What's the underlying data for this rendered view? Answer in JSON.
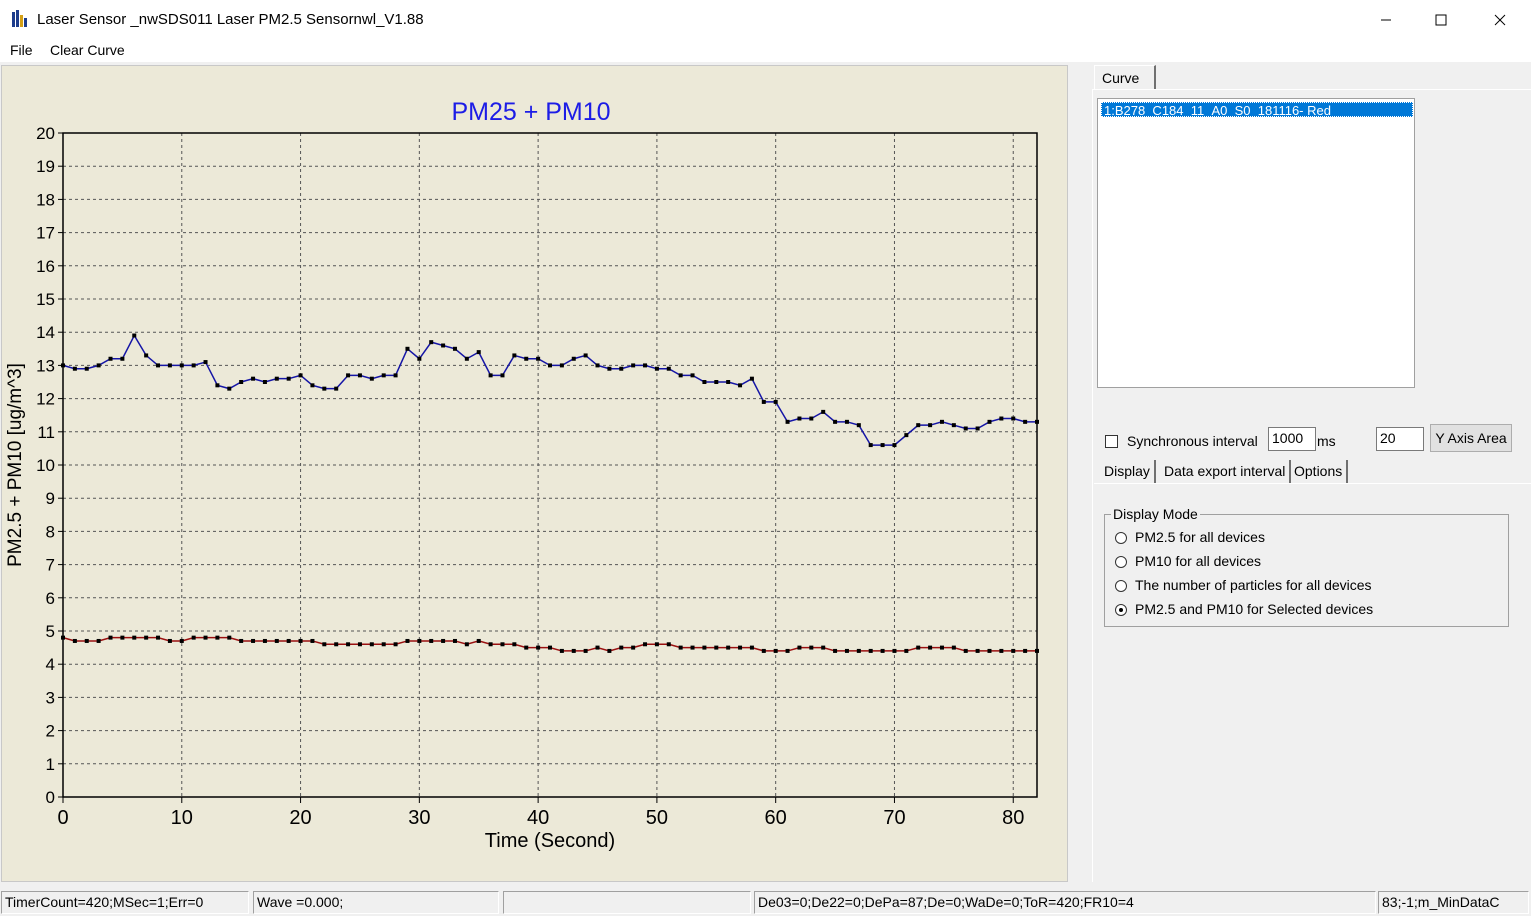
{
  "window": {
    "title": "Laser Sensor _nwSDS011 Laser PM2.5 Sensornwl_V1.88"
  },
  "menu": {
    "file": "File",
    "clear_curve": "Clear Curve"
  },
  "chart_data": {
    "type": "line",
    "title": "PM25 + PM10",
    "xlabel": "Time (Second)",
    "ylabel": "PM2.5 + PM10 [ug/m^3]",
    "xlim": [
      0,
      82
    ],
    "ylim": [
      0,
      20
    ],
    "xticks": [
      0,
      10,
      20,
      30,
      40,
      50,
      60,
      70,
      80
    ],
    "yticks": [
      0,
      1,
      2,
      3,
      4,
      5,
      6,
      7,
      8,
      9,
      10,
      11,
      12,
      13,
      14,
      15,
      16,
      17,
      18,
      19,
      20
    ],
    "grid": true,
    "colors": {
      "title": "#1c1ce6",
      "series_blue": "#1515a6",
      "series_red": "#9a1010",
      "marker": "#000000",
      "background": "#ece9d8"
    },
    "series": [
      {
        "values": [
          13.0,
          12.9,
          12.9,
          13.0,
          13.2,
          13.2,
          13.9,
          13.3,
          13.0,
          13.0,
          13.0,
          13.0,
          13.1,
          12.4,
          12.3,
          12.5,
          12.6,
          12.5,
          12.6,
          12.6,
          12.7,
          12.4,
          12.3,
          12.3,
          12.7,
          12.7,
          12.6,
          12.7,
          12.7,
          13.5,
          13.2,
          13.7,
          13.6,
          13.5,
          13.2,
          13.4,
          12.7,
          12.7,
          13.3,
          13.2,
          13.2,
          13.0,
          13.0,
          13.2,
          13.3,
          13.0,
          12.9,
          12.9,
          13.0,
          13.0,
          12.9,
          12.9,
          12.7,
          12.7,
          12.5,
          12.5,
          12.5,
          12.4,
          12.6,
          11.9,
          11.9,
          11.3,
          11.4,
          11.4,
          11.6,
          11.3,
          11.3,
          11.2,
          10.6,
          10.6,
          10.6,
          10.9,
          11.2,
          11.2,
          11.3,
          11.2,
          11.1,
          11.1,
          11.3,
          11.4,
          11.4,
          11.3,
          11.3
        ]
      },
      {
        "values": [
          4.8,
          4.7,
          4.7,
          4.7,
          4.8,
          4.8,
          4.8,
          4.8,
          4.8,
          4.7,
          4.7,
          4.8,
          4.8,
          4.8,
          4.8,
          4.7,
          4.7,
          4.7,
          4.7,
          4.7,
          4.7,
          4.7,
          4.6,
          4.6,
          4.6,
          4.6,
          4.6,
          4.6,
          4.6,
          4.7,
          4.7,
          4.7,
          4.7,
          4.7,
          4.6,
          4.7,
          4.6,
          4.6,
          4.6,
          4.5,
          4.5,
          4.5,
          4.4,
          4.4,
          4.4,
          4.5,
          4.4,
          4.5,
          4.5,
          4.6,
          4.6,
          4.6,
          4.5,
          4.5,
          4.5,
          4.5,
          4.5,
          4.5,
          4.5,
          4.4,
          4.4,
          4.4,
          4.5,
          4.5,
          4.5,
          4.4,
          4.4,
          4.4,
          4.4,
          4.4,
          4.4,
          4.4,
          4.5,
          4.5,
          4.5,
          4.5,
          4.4,
          4.4,
          4.4,
          4.4,
          4.4,
          4.4,
          4.4
        ]
      }
    ]
  },
  "panel": {
    "curve_tab": "Curve",
    "list_items": [
      "1:B278_C184_11_A0_S0_181116- Red"
    ],
    "sync_label": "Synchronous interval",
    "sync_checked": false,
    "interval_value": "1000",
    "ms_label": "ms",
    "yaxis_value": "20",
    "yaxis_button": "Y Axis Area",
    "tabs": {
      "display": "Display",
      "export": "Data export interval",
      "options": "Options"
    },
    "display_mode": {
      "title": "Display Mode",
      "options": [
        "PM2.5 for all devices",
        "PM10 for all devices",
        "The number of particles for all devices",
        "PM2.5 and PM10 for Selected devices"
      ],
      "selected": 3
    }
  },
  "status": {
    "cell1": "TimerCount=420;MSec=1;Err=0",
    "cell2": "Wave =0.000;",
    "cell3": "",
    "cell4": "De03=0;De22=0;DePa=87;De=0;WaDe=0;ToR=420;FR10=4",
    "cell5": "83;-1;m_MinDataC"
  }
}
